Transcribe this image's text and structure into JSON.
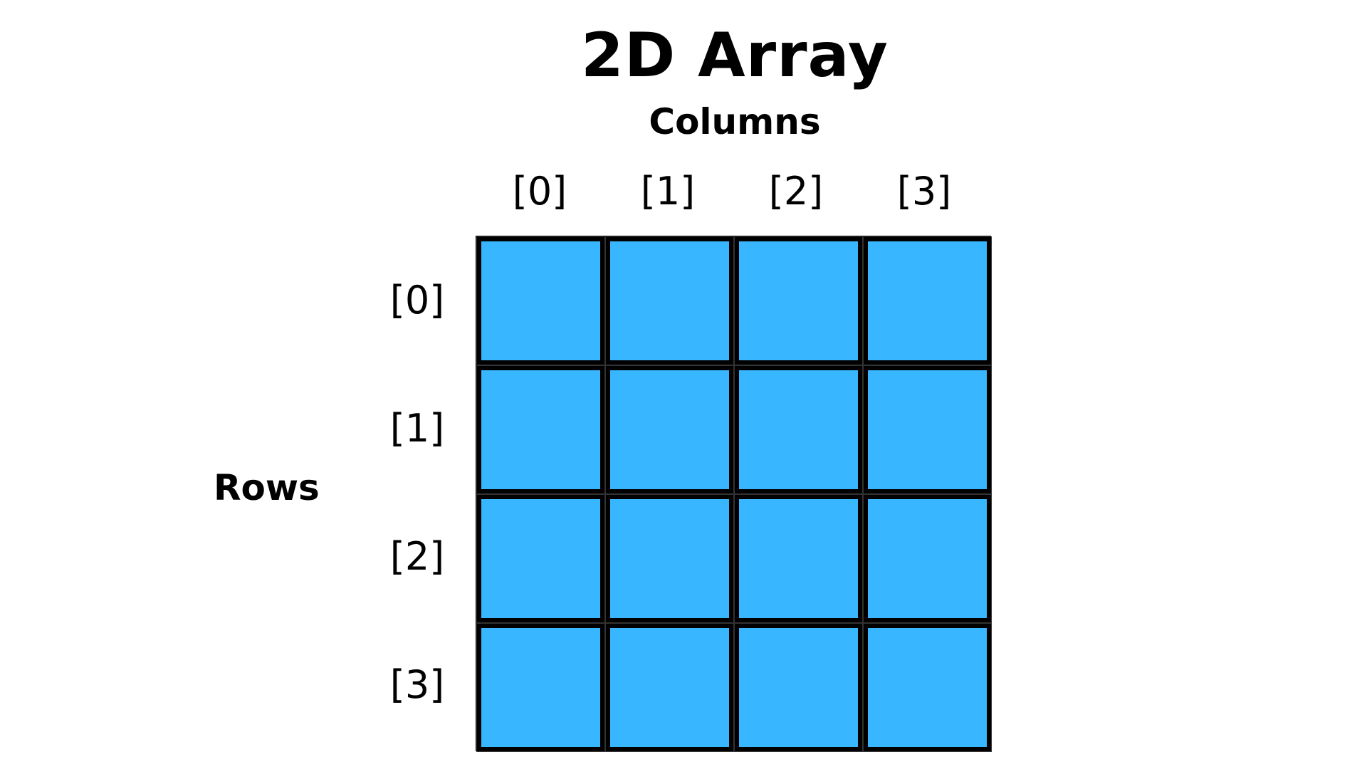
{
  "title": "2D Array",
  "columns_heading": "Columns",
  "rows_heading": "Rows",
  "column_indices": [
    "[0]",
    "[1]",
    "[2]",
    "[3]"
  ],
  "row_indices": [
    "[0]",
    "[1]",
    "[2]",
    "[3]"
  ],
  "grid": {
    "rows": 4,
    "columns": 4
  },
  "colors": {
    "cell_fill": "#38b6ff",
    "cell_border": "#000000",
    "text": "#000000",
    "background": "#ffffff"
  }
}
